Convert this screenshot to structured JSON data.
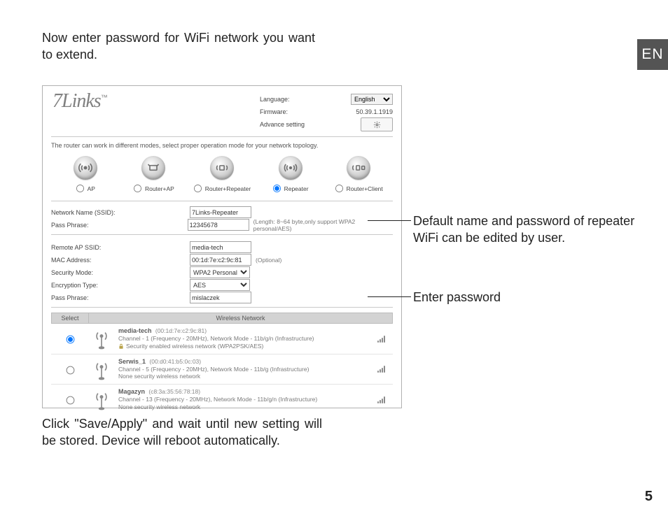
{
  "page": {
    "intro": "Now enter password for WiFi network you want to extend.",
    "outro": "Click \"Save/Apply\" and wait until new setting will be stored. Device will reboot automatically.",
    "lang_tab": "EN",
    "page_number": "5"
  },
  "callouts": {
    "c1": "Default name and password of repeater WiFi can be edited by user.",
    "c2": "Enter password"
  },
  "ui": {
    "logo": "7Links",
    "language_label": "Language:",
    "language_value": "English",
    "firmware_label": "Firmware:",
    "firmware_value": "50.39.1.1919",
    "advance_label": "Advance setting",
    "topology_desc": "The router can work in different modes, select proper operation mode for your network topology.",
    "modes": {
      "ap": "AP",
      "router_ap": "Router+AP",
      "router_repeater": "Router+Repeater",
      "repeater": "Repeater",
      "router_client": "Router+Client"
    },
    "fields": {
      "ssid_label": "Network Name (SSID):",
      "ssid_value": "7Links-Repeater",
      "pass_label": "Pass Phrase:",
      "pass_value": "12345678",
      "pass_hint": "(Length: 8~64 byte,only support WPA2 personal/AES)",
      "remote_ssid_label": "Remote AP SSID:",
      "remote_ssid_value": "media-tech",
      "mac_label": "MAC Address:",
      "mac_value": "00:1d:7e:c2:9c:81",
      "mac_hint": "(Optional)",
      "secmode_label": "Security Mode:",
      "secmode_value": "WPA2 Personal",
      "enc_label": "Encryption Type:",
      "enc_value": "AES",
      "pass2_label": "Pass Phrase:",
      "pass2_value": "mislaczek"
    },
    "wtable": {
      "col_select": "Select",
      "col_net": "Wireless Network",
      "rows": [
        {
          "name": "media-tech",
          "mac": "(00:1d:7e:c2:9c:81)",
          "line2": "Channel - 1 (Frequency - 20MHz), Network Mode - 11b/g/n (Infrastructure)",
          "line3": "Security enabled wireless network (WPA2PSK/AES)",
          "secured": true,
          "signal": "full",
          "selected": true
        },
        {
          "name": "Serwis_1",
          "mac": "(00:d0:41:b5:0c:03)",
          "line2": "Channel - 5 (Frequency - 20MHz), Network Mode - 11b/g (Infrastructure)",
          "line3": "None security wireless network",
          "secured": false,
          "signal": "full",
          "selected": false
        },
        {
          "name": "Magazyn",
          "mac": "(c8:3a:35:56:78:18)",
          "line2": "Channel - 13 (Frequency - 20MHz), Network Mode - 11b/g/n (Infrastructure)",
          "line3": "None security wireless network",
          "secured": false,
          "signal": "full",
          "selected": false
        }
      ]
    }
  }
}
